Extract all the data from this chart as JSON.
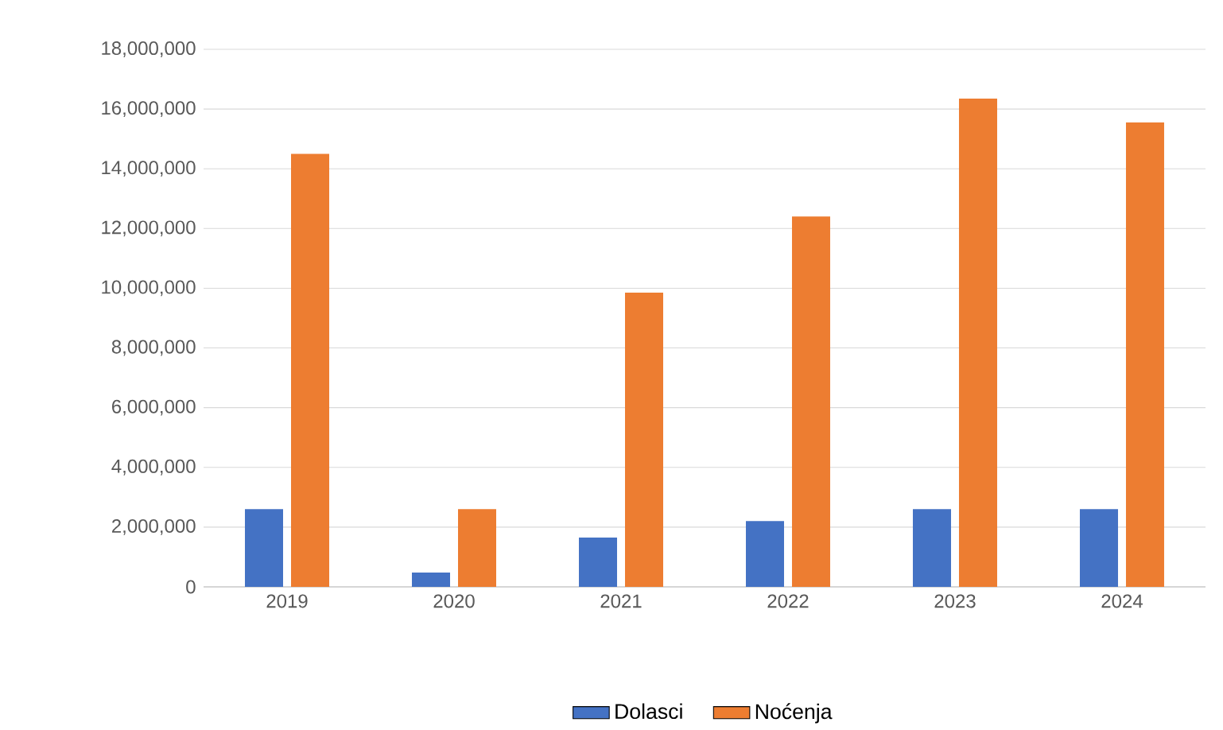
{
  "chart_data": {
    "type": "bar",
    "categories": [
      "2019",
      "2020",
      "2021",
      "2022",
      "2023",
      "2024"
    ],
    "series": [
      {
        "name": "Dolasci",
        "color": "#4472c4",
        "values": [
          2600000,
          480000,
          1650000,
          2200000,
          2600000,
          2600000
        ]
      },
      {
        "name": "Noćenja",
        "color": "#ed7d31",
        "values": [
          14500000,
          2600000,
          9850000,
          12400000,
          16350000,
          15550000
        ]
      }
    ],
    "ylim": [
      0,
      18000000
    ],
    "yticks": [
      {
        "value": 0,
        "label": "0"
      },
      {
        "value": 2000000,
        "label": "2,000,000"
      },
      {
        "value": 4000000,
        "label": "4,000,000"
      },
      {
        "value": 6000000,
        "label": "6,000,000"
      },
      {
        "value": 8000000,
        "label": "8,000,000"
      },
      {
        "value": 10000000,
        "label": "10,000,000"
      },
      {
        "value": 12000000,
        "label": "12,000,000"
      },
      {
        "value": 14000000,
        "label": "14,000,000"
      },
      {
        "value": 16000000,
        "label": "16,000,000"
      },
      {
        "value": 18000000,
        "label": "18,000,000"
      }
    ],
    "grid": "y",
    "legend": "bottom"
  }
}
